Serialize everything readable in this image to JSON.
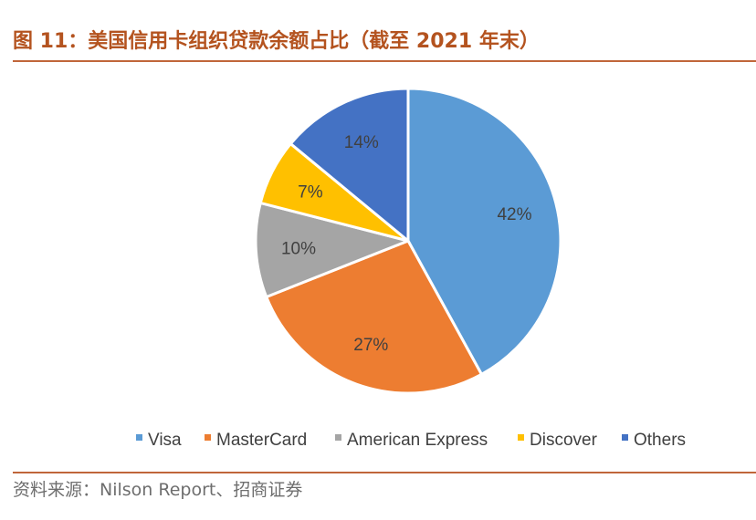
{
  "title": "图 11：美国信用卡组织贷款余额占比（截至 2021 年末）",
  "source": "资料来源：Nilson Report、招商证券",
  "colors": {
    "title": "#b4531f",
    "rule": "#c0663a",
    "Visa": "#5b9bd5",
    "MasterCard": "#ed7d31",
    "American Express": "#a5a5a5",
    "Discover": "#ffc000",
    "Others": "#4472c4"
  },
  "chart_data": {
    "type": "pie",
    "categories": [
      "Visa",
      "MasterCard",
      "American Express",
      "Discover",
      "Others"
    ],
    "values": [
      42,
      27,
      10,
      7,
      14
    ],
    "labels": [
      "42%",
      "27%",
      "10%",
      "7%",
      "14%"
    ],
    "legend_position": "bottom",
    "start_angle": "12 o'clock, clockwise"
  }
}
